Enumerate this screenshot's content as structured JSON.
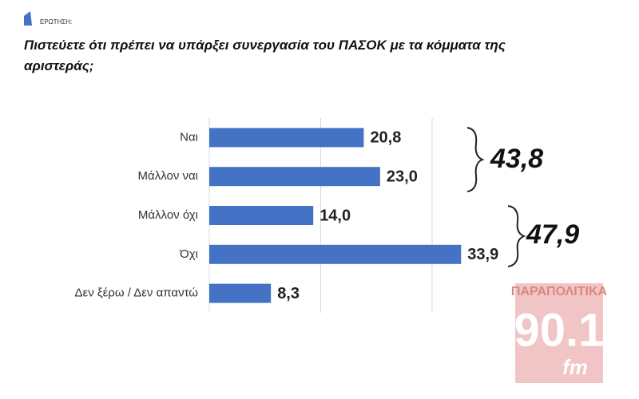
{
  "chart_data": {
    "type": "hbar",
    "kicker": "ΕΡΩΤΗΣΗ:",
    "title": "Πιστεύετε ότι πρέπει να υπάρξει συνεργασία του ΠΑΣΟΚ με τα κόμματα της αριστεράς;",
    "categories": [
      "Ναι",
      "Μάλλον ναι",
      "Μάλλον όχι",
      "Όχι",
      "Δεν ξέρω / Δεν απαντώ"
    ],
    "values": [
      20.8,
      23.0,
      14.0,
      33.9,
      8.3
    ],
    "value_labels": [
      "20,8",
      "23,0",
      "14,0",
      "33,9",
      "8,3"
    ],
    "color": "#4472c4",
    "xlim": [
      0,
      40
    ],
    "xticks": [
      0,
      15,
      30
    ],
    "grid": true,
    "group_totals": [
      {
        "value": 43.8,
        "label": "43,8"
      },
      {
        "value": 47.9,
        "label": "47,9"
      }
    ],
    "watermark": {
      "brand": "ΠΑΡΑΠΟΛΙΤΙΚΑ",
      "frequency": "90.1",
      "unit": "fm"
    }
  }
}
